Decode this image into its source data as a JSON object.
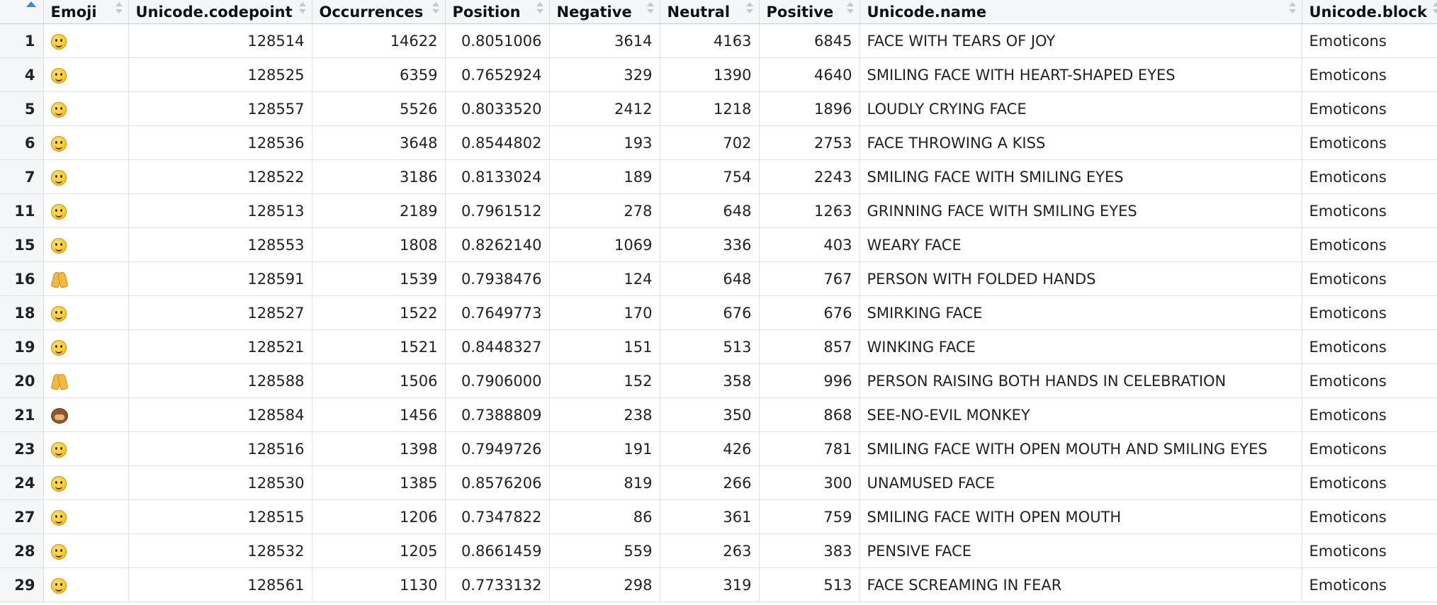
{
  "table": {
    "columns": [
      "Emoji",
      "Unicode.codepoint",
      "Occurrences",
      "Position",
      "Negative",
      "Neutral",
      "Positive",
      "Unicode.name",
      "Unicode.block"
    ],
    "rows": [
      {
        "idx": "1",
        "icon": "face-with-tears-of-joy-icon",
        "codepoint": "128514",
        "occurrences": "14622",
        "position": "0.8051006",
        "negative": "3614",
        "neutral": "4163",
        "positive": "6845",
        "name": "FACE WITH TEARS OF JOY",
        "block": "Emoticons"
      },
      {
        "idx": "4",
        "icon": "heart-eyes-face-icon",
        "codepoint": "128525",
        "occurrences": "6359",
        "position": "0.7652924",
        "negative": "329",
        "neutral": "1390",
        "positive": "4640",
        "name": "SMILING FACE WITH HEART-SHAPED EYES",
        "block": "Emoticons"
      },
      {
        "idx": "5",
        "icon": "loudly-crying-face-icon",
        "codepoint": "128557",
        "occurrences": "5526",
        "position": "0.8033520",
        "negative": "2412",
        "neutral": "1218",
        "positive": "1896",
        "name": "LOUDLY CRYING FACE",
        "block": "Emoticons"
      },
      {
        "idx": "6",
        "icon": "face-throwing-kiss-icon",
        "codepoint": "128536",
        "occurrences": "3648",
        "position": "0.8544802",
        "negative": "193",
        "neutral": "702",
        "positive": "2753",
        "name": "FACE THROWING A KISS",
        "block": "Emoticons"
      },
      {
        "idx": "7",
        "icon": "smiling-eyes-face-icon",
        "codepoint": "128522",
        "occurrences": "3186",
        "position": "0.8133024",
        "negative": "189",
        "neutral": "754",
        "positive": "2243",
        "name": "SMILING FACE WITH SMILING EYES",
        "block": "Emoticons"
      },
      {
        "idx": "11",
        "icon": "grinning-face-icon",
        "codepoint": "128513",
        "occurrences": "2189",
        "position": "0.7961512",
        "negative": "278",
        "neutral": "648",
        "positive": "1263",
        "name": "GRINNING FACE WITH SMILING EYES",
        "block": "Emoticons"
      },
      {
        "idx": "15",
        "icon": "weary-face-icon",
        "codepoint": "128553",
        "occurrences": "1808",
        "position": "0.8262140",
        "negative": "1069",
        "neutral": "336",
        "positive": "403",
        "name": "WEARY FACE",
        "block": "Emoticons"
      },
      {
        "idx": "16",
        "icon": "folded-hands-icon",
        "codepoint": "128591",
        "occurrences": "1539",
        "position": "0.7938476",
        "negative": "124",
        "neutral": "648",
        "positive": "767",
        "name": "PERSON WITH FOLDED HANDS",
        "block": "Emoticons"
      },
      {
        "idx": "18",
        "icon": "smirking-face-icon",
        "codepoint": "128527",
        "occurrences": "1522",
        "position": "0.7649773",
        "negative": "170",
        "neutral": "676",
        "positive": "676",
        "name": "SMIRKING FACE",
        "block": "Emoticons"
      },
      {
        "idx": "19",
        "icon": "winking-face-icon",
        "codepoint": "128521",
        "occurrences": "1521",
        "position": "0.8448327",
        "negative": "151",
        "neutral": "513",
        "positive": "857",
        "name": "WINKING FACE",
        "block": "Emoticons"
      },
      {
        "idx": "20",
        "icon": "raising-hands-icon",
        "codepoint": "128588",
        "occurrences": "1506",
        "position": "0.7906000",
        "negative": "152",
        "neutral": "358",
        "positive": "996",
        "name": "PERSON RAISING BOTH HANDS IN CELEBRATION",
        "block": "Emoticons"
      },
      {
        "idx": "21",
        "icon": "see-no-evil-monkey-icon",
        "codepoint": "128584",
        "occurrences": "1456",
        "position": "0.7388809",
        "negative": "238",
        "neutral": "350",
        "positive": "868",
        "name": "SEE-NO-EVIL MONKEY",
        "block": "Emoticons"
      },
      {
        "idx": "23",
        "icon": "smiling-open-mouth-eyes-face-icon",
        "codepoint": "128516",
        "occurrences": "1398",
        "position": "0.7949726",
        "negative": "191",
        "neutral": "426",
        "positive": "781",
        "name": "SMILING FACE WITH OPEN MOUTH AND SMILING EYES",
        "block": "Emoticons"
      },
      {
        "idx": "24",
        "icon": "unamused-face-icon",
        "codepoint": "128530",
        "occurrences": "1385",
        "position": "0.8576206",
        "negative": "819",
        "neutral": "266",
        "positive": "300",
        "name": "UNAMUSED FACE",
        "block": "Emoticons"
      },
      {
        "idx": "27",
        "icon": "smiling-open-mouth-face-icon",
        "codepoint": "128515",
        "occurrences": "1206",
        "position": "0.7347822",
        "negative": "86",
        "neutral": "361",
        "positive": "759",
        "name": "SMILING FACE WITH OPEN MOUTH",
        "block": "Emoticons"
      },
      {
        "idx": "28",
        "icon": "pensive-face-icon",
        "codepoint": "128532",
        "occurrences": "1205",
        "position": "0.8661459",
        "negative": "559",
        "neutral": "263",
        "positive": "383",
        "name": "PENSIVE FACE",
        "block": "Emoticons"
      },
      {
        "idx": "29",
        "icon": "face-screaming-in-fear-icon",
        "codepoint": "128561",
        "occurrences": "1130",
        "position": "0.7733132",
        "negative": "298",
        "neutral": "319",
        "positive": "513",
        "name": "FACE SCREAMING IN FEAR",
        "block": "Emoticons"
      }
    ]
  },
  "colors": {
    "header_bg": "#f4f6f8",
    "sort_active": "#2f8fd8",
    "sort_inactive": "#c3c8ce",
    "border": "#dde1e5"
  }
}
